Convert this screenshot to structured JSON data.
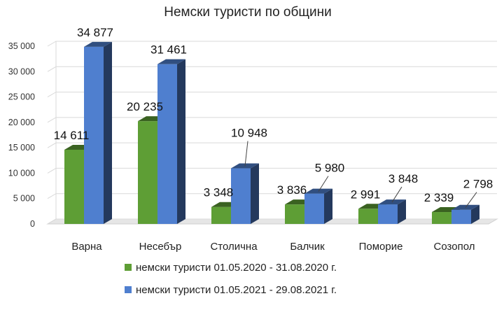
{
  "chart_data": {
    "type": "bar",
    "title": "Немски туристи по общини",
    "xlabel": "",
    "ylabel": "",
    "ylim": [
      0,
      35000
    ],
    "yticks": [
      0,
      5000,
      10000,
      15000,
      20000,
      25000,
      30000,
      35000
    ],
    "ytick_labels": [
      "0",
      "5 000",
      "10 000",
      "15 000",
      "20 000",
      "25 000",
      "30 000",
      "35 000"
    ],
    "grid": true,
    "style": "3d-clustered",
    "legend_position": "bottom",
    "categories": [
      "Варна",
      "Несебър",
      "Столична",
      "Балчик",
      "Поморие",
      "Созопол"
    ],
    "series": [
      {
        "name": "немски туристи 01.05.2020 - 31.08.2020 г.",
        "color": "#5e9e35",
        "values": [
          14611,
          20235,
          3348,
          3836,
          2991,
          2339
        ],
        "labels": [
          "14 611",
          "20 235",
          "3 348",
          "3 836",
          "2 991",
          "2 339"
        ]
      },
      {
        "name": "немски туристи 01.05.2021 - 29.08.2021 г.",
        "color": "#4f7fcf",
        "values": [
          34877,
          31461,
          10948,
          5980,
          3848,
          2798
        ],
        "labels": [
          "34 877",
          "31 461",
          "10 948",
          "5 980",
          "3 848",
          "2 798"
        ]
      }
    ]
  }
}
